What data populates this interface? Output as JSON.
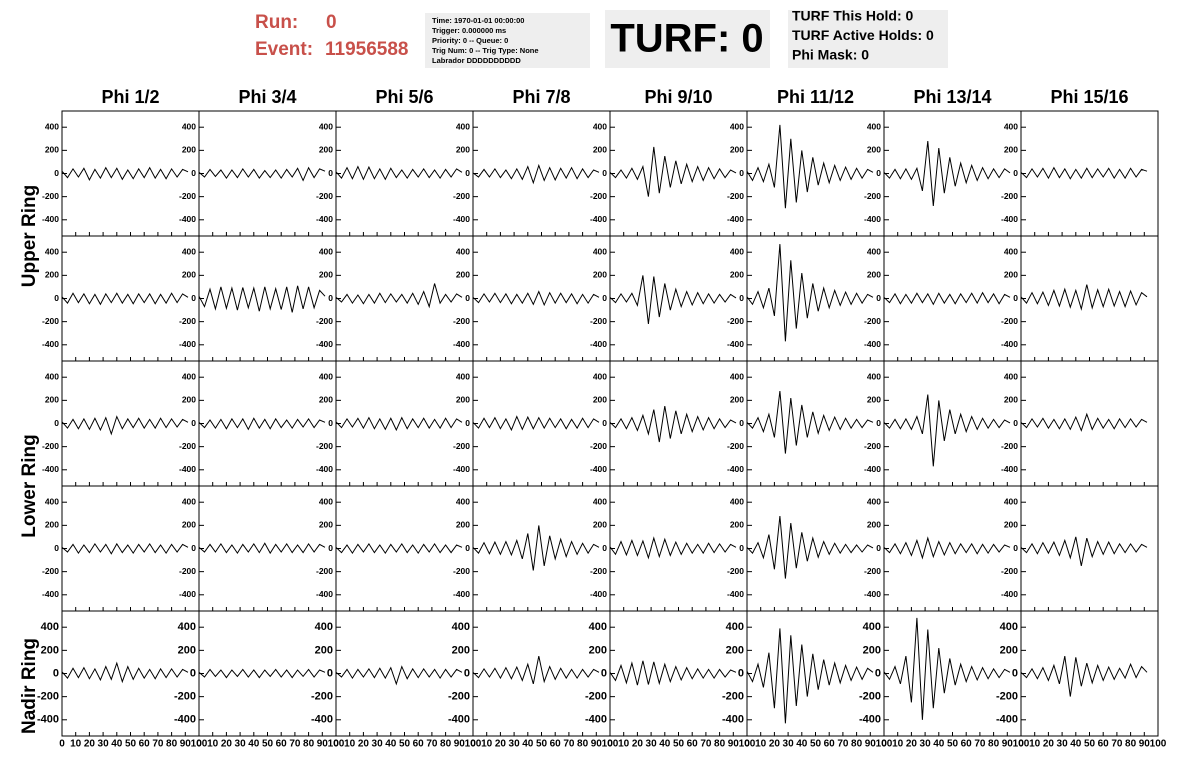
{
  "header": {
    "run_label": "Run:",
    "run": "0",
    "event_label": "Event:",
    "event": "11956588",
    "info": [
      "Time: 1970-01-01 00:00:00",
      "Trigger: 0.000000 ms",
      "Priority: 0 -- Queue: 0",
      "Trig Num: 0 -- Trig Type: None",
      "Labrador DDDDDDDDDD"
    ],
    "turf": "TURF: 0",
    "turf_info": [
      "TURF This Hold: 0",
      "TURF Active Holds: 0",
      "Phi Mask: 0"
    ]
  },
  "chart_data": {
    "type": "line-grid",
    "color": "#000000",
    "column_titles": [
      "Phi 1/2",
      "Phi 3/4",
      "Phi 5/6",
      "Phi 7/8",
      "Phi 9/10",
      "Phi 11/12",
      "Phi 13/14",
      "Phi 15/16"
    ],
    "row_titles": [
      "Upper Ring",
      "Lower Ring",
      "Nadir Ring"
    ],
    "xlim": [
      0,
      100
    ],
    "ylim": [
      -540,
      540
    ],
    "xticks": [
      0,
      10,
      20,
      30,
      40,
      50,
      60,
      70,
      80,
      90,
      100
    ],
    "yticks": [
      -400,
      -200,
      0,
      200,
      400
    ],
    "x": [
      0,
      4,
      8,
      12,
      16,
      20,
      24,
      28,
      32,
      36,
      40,
      44,
      48,
      52,
      56,
      60,
      64,
      68,
      72,
      76,
      80,
      84,
      88,
      92
    ],
    "panels": [
      [
        [
          20,
          -35,
          40,
          -30,
          45,
          -55,
          35,
          -40,
          50,
          -35,
          45,
          -50,
          30,
          -45,
          40,
          -35,
          50,
          -40,
          35,
          -45,
          40,
          -30,
          35,
          15
        ],
        [
          10,
          -30,
          35,
          -25,
          30,
          -40,
          30,
          -35,
          40,
          -30,
          35,
          -40,
          25,
          -35,
          30,
          -40,
          35,
          -30,
          45,
          -60,
          50,
          -35,
          40,
          20
        ],
        [
          15,
          -40,
          50,
          -45,
          60,
          -50,
          55,
          -45,
          40,
          -50,
          45,
          -35,
          30,
          -40,
          35,
          -30,
          40,
          -35,
          30,
          -40,
          35,
          -30,
          40,
          10
        ],
        [
          5,
          -30,
          35,
          -30,
          40,
          -35,
          30,
          -45,
          40,
          -50,
          60,
          -80,
          70,
          -60,
          50,
          -55,
          45,
          -40,
          50,
          -45,
          40,
          -35,
          30,
          10
        ],
        [
          10,
          -35,
          30,
          -40,
          45,
          -50,
          60,
          -200,
          230,
          -170,
          150,
          -120,
          110,
          -90,
          80,
          -70,
          60,
          -60,
          50,
          -45,
          40,
          -35,
          30,
          5
        ],
        [
          20,
          -60,
          50,
          -70,
          80,
          -120,
          420,
          -300,
          300,
          -250,
          200,
          -160,
          140,
          -100,
          90,
          -80,
          70,
          -60,
          55,
          -50,
          45,
          -40,
          35,
          10
        ],
        [
          10,
          -40,
          35,
          -45,
          40,
          -50,
          45,
          -150,
          280,
          -280,
          220,
          -170,
          140,
          -110,
          90,
          -80,
          70,
          -60,
          50,
          -45,
          40,
          -35,
          40,
          5
        ],
        [
          10,
          -35,
          40,
          -30,
          45,
          -40,
          50,
          -35,
          40,
          -45,
          35,
          -40,
          45,
          -35,
          40,
          -30,
          45,
          -40,
          35,
          -40,
          45,
          -30,
          35,
          20
        ]
      ],
      [
        [
          15,
          -40,
          45,
          -35,
          40,
          -45,
          35,
          -50,
          40,
          -35,
          45,
          -40,
          35,
          -45,
          40,
          -35,
          40,
          -45,
          35,
          -40,
          45,
          -35,
          40,
          10
        ],
        [
          20,
          -70,
          80,
          -90,
          100,
          -85,
          90,
          -100,
          95,
          -80,
          90,
          -110,
          100,
          -90,
          85,
          -95,
          100,
          -120,
          110,
          -90,
          100,
          -80,
          70,
          20
        ],
        [
          10,
          -30,
          35,
          -40,
          30,
          -45,
          35,
          -40,
          45,
          -35,
          40,
          -30,
          35,
          -40,
          45,
          -50,
          60,
          -70,
          130,
          -40,
          35,
          -30,
          40,
          10
        ],
        [
          10,
          -35,
          40,
          -30,
          45,
          -35,
          40,
          -45,
          35,
          -40,
          45,
          -50,
          60,
          -55,
          50,
          -40,
          45,
          -35,
          40,
          -45,
          35,
          -40,
          35,
          10
        ],
        [
          10,
          -35,
          40,
          -30,
          45,
          -60,
          200,
          -220,
          190,
          -160,
          130,
          -100,
          80,
          -70,
          60,
          -55,
          50,
          -45,
          40,
          -40,
          35,
          -30,
          35,
          5
        ],
        [
          15,
          -50,
          60,
          -80,
          90,
          -150,
          470,
          -370,
          330,
          -260,
          220,
          -170,
          130,
          -110,
          90,
          -80,
          70,
          -60,
          55,
          -50,
          45,
          -40,
          35,
          10
        ],
        [
          10,
          -35,
          40,
          -45,
          35,
          -40,
          45,
          -35,
          40,
          -50,
          45,
          -40,
          35,
          -45,
          40,
          -35,
          45,
          -40,
          50,
          -35,
          40,
          -45,
          35,
          10
        ],
        [
          15,
          -40,
          50,
          -45,
          55,
          -60,
          70,
          -65,
          80,
          -75,
          70,
          -90,
          120,
          -80,
          75,
          -70,
          80,
          -65,
          60,
          -70,
          65,
          -55,
          50,
          15
        ]
      ],
      [
        [
          15,
          -40,
          35,
          -45,
          40,
          -50,
          45,
          -55,
          50,
          -90,
          60,
          -45,
          40,
          -35,
          45,
          -40,
          35,
          -40,
          45,
          -35,
          40,
          -30,
          35,
          10
        ],
        [
          10,
          -35,
          30,
          -40,
          35,
          -45,
          40,
          -35,
          40,
          -50,
          45,
          -40,
          35,
          -45,
          40,
          -35,
          30,
          -40,
          35,
          -30,
          40,
          -35,
          30,
          10
        ],
        [
          15,
          -35,
          40,
          -30,
          45,
          -40,
          50,
          -45,
          40,
          -50,
          45,
          -55,
          50,
          -45,
          40,
          -35,
          45,
          -40,
          35,
          -40,
          45,
          -35,
          40,
          10
        ],
        [
          10,
          -40,
          45,
          -35,
          50,
          -45,
          40,
          -55,
          60,
          -50,
          55,
          -45,
          50,
          -40,
          45,
          -35,
          40,
          -45,
          35,
          -40,
          45,
          -35,
          40,
          10
        ],
        [
          10,
          -35,
          40,
          -45,
          50,
          -60,
          70,
          -90,
          120,
          -160,
          150,
          -130,
          110,
          -90,
          80,
          -70,
          60,
          -55,
          50,
          -45,
          40,
          -35,
          30,
          5
        ],
        [
          10,
          -40,
          50,
          -70,
          80,
          -120,
          280,
          -260,
          220,
          -190,
          160,
          -120,
          100,
          -85,
          70,
          -60,
          55,
          -50,
          45,
          -40,
          35,
          -35,
          30,
          10
        ],
        [
          10,
          -40,
          35,
          -45,
          40,
          -50,
          60,
          -90,
          250,
          -370,
          200,
          -150,
          120,
          -90,
          80,
          -70,
          60,
          -50,
          45,
          -40,
          35,
          -35,
          30,
          5
        ],
        [
          10,
          -35,
          40,
          -30,
          45,
          -40,
          35,
          -45,
          40,
          -50,
          55,
          -60,
          80,
          -50,
          45,
          -40,
          35,
          -45,
          40,
          -35,
          40,
          -30,
          35,
          10
        ]
      ],
      [
        [
          10,
          -30,
          35,
          -40,
          30,
          -35,
          40,
          -30,
          35,
          -45,
          40,
          -35,
          30,
          -40,
          35,
          -30,
          40,
          -35,
          30,
          -40,
          35,
          -30,
          35,
          10
        ],
        [
          10,
          -30,
          35,
          -30,
          40,
          -35,
          30,
          -40,
          35,
          -30,
          40,
          -35,
          45,
          -40,
          35,
          -30,
          40,
          -35,
          30,
          -35,
          40,
          -30,
          35,
          10
        ],
        [
          10,
          -35,
          30,
          -40,
          35,
          -30,
          40,
          -35,
          30,
          -40,
          35,
          -30,
          40,
          -35,
          30,
          -40,
          35,
          -30,
          40,
          -35,
          30,
          -35,
          30,
          10
        ],
        [
          10,
          -40,
          50,
          -45,
          55,
          -50,
          60,
          -55,
          70,
          -90,
          130,
          -190,
          200,
          -150,
          110,
          -90,
          80,
          -70,
          60,
          -50,
          45,
          -40,
          35,
          10
        ],
        [
          15,
          -50,
          60,
          -55,
          70,
          -60,
          65,
          -80,
          90,
          -70,
          80,
          -60,
          55,
          -50,
          45,
          -40,
          35,
          -40,
          45,
          -35,
          40,
          -30,
          35,
          10
        ],
        [
          10,
          -40,
          50,
          -80,
          120,
          -180,
          280,
          -260,
          220,
          -170,
          140,
          -110,
          90,
          -75,
          60,
          -50,
          45,
          -40,
          35,
          -35,
          30,
          -30,
          30,
          5
        ],
        [
          10,
          -35,
          40,
          -45,
          50,
          -60,
          70,
          -80,
          90,
          -70,
          60,
          -55,
          50,
          -45,
          40,
          -35,
          40,
          -45,
          35,
          -40,
          35,
          -30,
          30,
          10
        ],
        [
          10,
          -35,
          40,
          -45,
          50,
          -40,
          55,
          -60,
          70,
          -80,
          100,
          -150,
          90,
          -70,
          60,
          -50,
          55,
          -45,
          40,
          -35,
          40,
          -30,
          35,
          10
        ]
      ],
      [
        [
          15,
          -40,
          45,
          -35,
          50,
          -45,
          40,
          -55,
          60,
          -50,
          90,
          -70,
          60,
          -50,
          45,
          -40,
          35,
          -45,
          40,
          -35,
          40,
          -30,
          35,
          10
        ],
        [
          10,
          -30,
          35,
          -25,
          30,
          -35,
          30,
          -25,
          35,
          -30,
          30,
          -35,
          30,
          -25,
          35,
          -30,
          30,
          -35,
          30,
          -25,
          35,
          -30,
          30,
          10
        ],
        [
          10,
          -30,
          35,
          -40,
          35,
          -30,
          40,
          -35,
          45,
          -40,
          50,
          -90,
          60,
          -45,
          40,
          -35,
          40,
          -30,
          35,
          -40,
          35,
          -30,
          35,
          10
        ],
        [
          10,
          -35,
          40,
          -30,
          45,
          -40,
          50,
          -45,
          55,
          -60,
          80,
          -90,
          150,
          -70,
          60,
          -50,
          45,
          -40,
          35,
          -40,
          35,
          -30,
          35,
          10
        ],
        [
          10,
          -60,
          70,
          -80,
          90,
          -100,
          110,
          -95,
          100,
          -85,
          80,
          -70,
          60,
          -55,
          50,
          -45,
          40,
          -40,
          35,
          -40,
          35,
          -30,
          30,
          10
        ],
        [
          20,
          -70,
          80,
          -120,
          180,
          -300,
          390,
          -430,
          330,
          -280,
          250,
          -200,
          170,
          -140,
          120,
          -100,
          90,
          -80,
          70,
          -60,
          55,
          -50,
          45,
          10
        ],
        [
          15,
          -50,
          60,
          -90,
          150,
          -250,
          480,
          -400,
          380,
          -300,
          220,
          -170,
          130,
          -100,
          80,
          -70,
          60,
          -55,
          50,
          -45,
          40,
          -35,
          35,
          10
        ],
        [
          10,
          -35,
          40,
          -45,
          50,
          -60,
          70,
          -90,
          150,
          -200,
          140,
          -110,
          90,
          -80,
          70,
          -60,
          55,
          -50,
          45,
          -40,
          80,
          -35,
          60,
          10
        ]
      ]
    ]
  }
}
